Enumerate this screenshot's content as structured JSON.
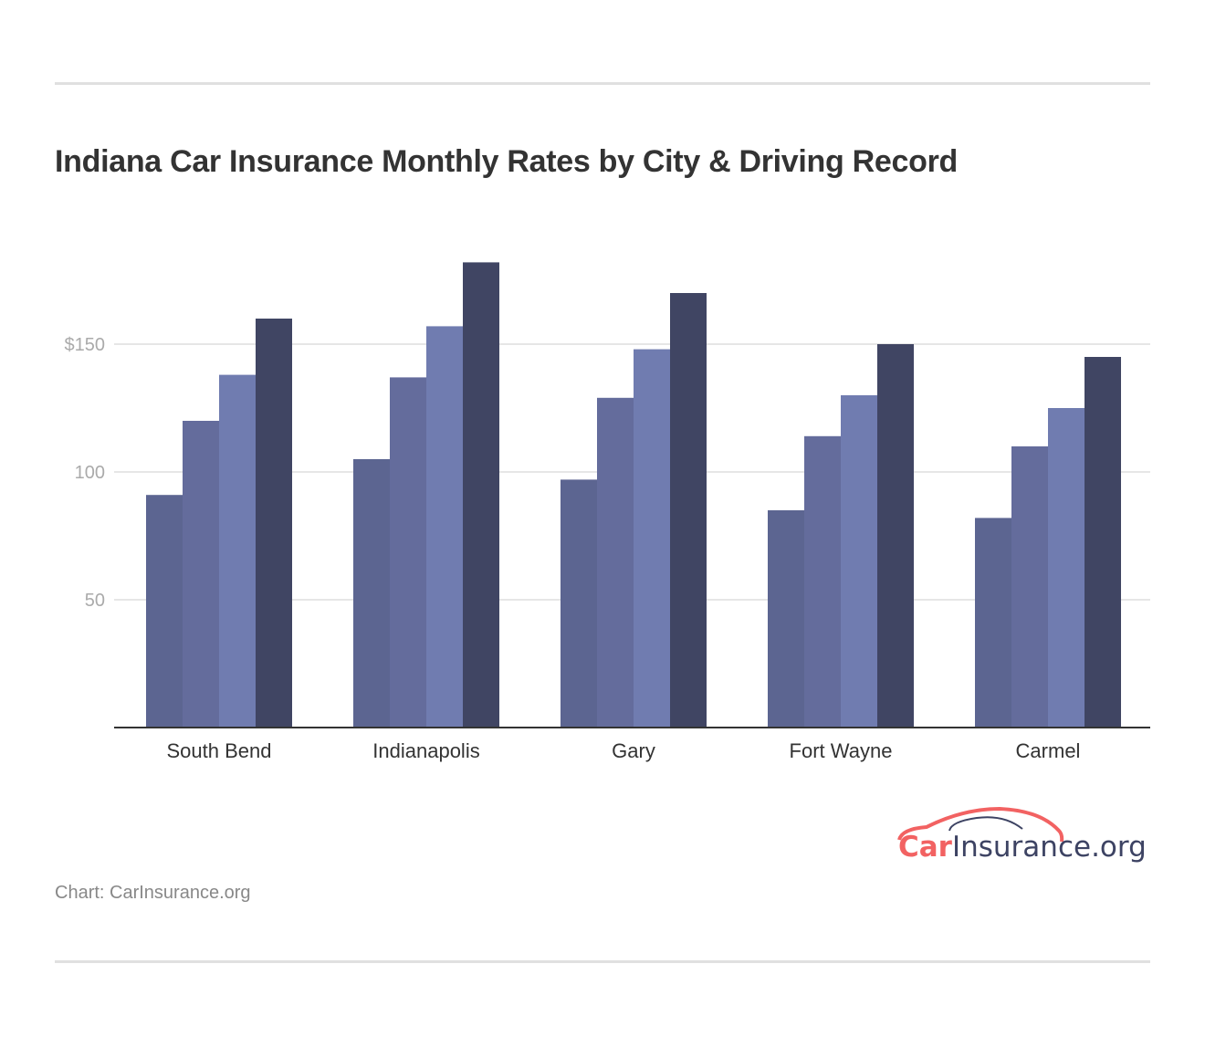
{
  "chart_data": {
    "type": "bar",
    "title": "Indiana Car Insurance Monthly Rates by City & Driving Record",
    "categories": [
      "South Bend",
      "Indianapolis",
      "Gary",
      "Fort Wayne",
      "Carmel"
    ],
    "series": [
      {
        "values": [
          91,
          105,
          97,
          85,
          82
        ],
        "color": "#5c6591"
      },
      {
        "values": [
          120,
          137,
          129,
          114,
          110
        ],
        "color": "#646c9c"
      },
      {
        "values": [
          138,
          157,
          148,
          130,
          125
        ],
        "color": "#707cb0"
      },
      {
        "values": [
          160,
          182,
          170,
          150,
          145
        ],
        "color": "#404563"
      }
    ],
    "yticks": [
      50,
      100,
      150
    ],
    "ytick_labels": [
      "50",
      "100",
      "$150"
    ],
    "ylim": [
      0,
      190
    ],
    "grid": true,
    "legend": "none",
    "xlabel": "",
    "ylabel": ""
  },
  "source": "Chart: CarInsurance.org",
  "logo": {
    "text_car": "Car",
    "text_rest": "Insurance.org",
    "color_car": "#f26262",
    "color_rest": "#3d4363"
  }
}
